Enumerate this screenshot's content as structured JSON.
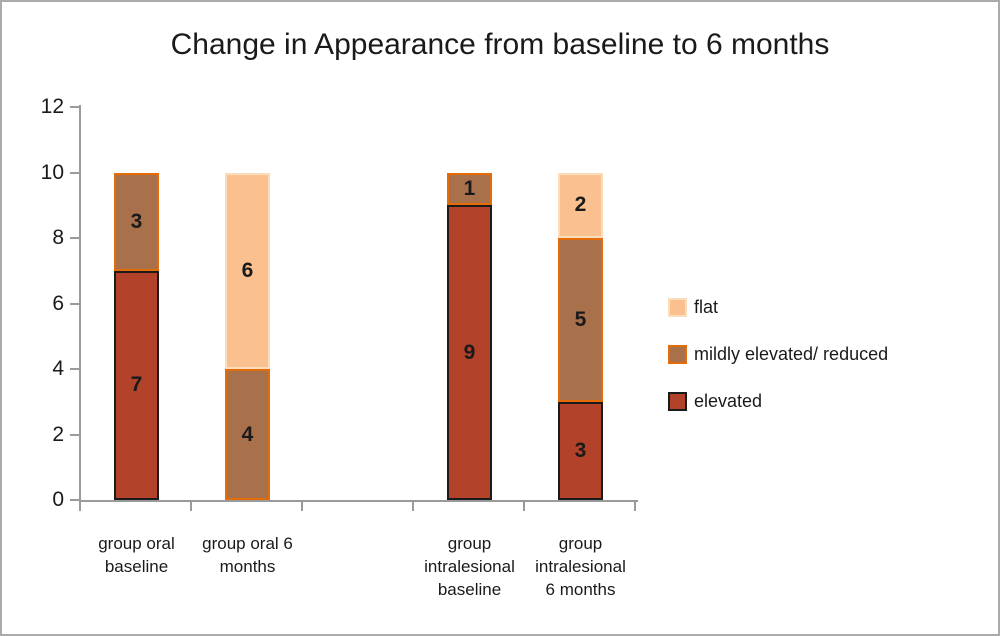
{
  "window": {
    "background": "#ffffff",
    "frame_border_color": "#ababab",
    "axis_color": "#9a9a9a",
    "text_color": "#1a1a1a"
  },
  "chart_data": {
    "type": "stacked-bar",
    "title": "Change in Appearance from baseline to 6 months",
    "xlabel": "",
    "ylabel": "",
    "ylim": [
      0,
      12
    ],
    "yticks": [
      0,
      2,
      4,
      6,
      8,
      10,
      12
    ],
    "grid": false,
    "legend_position": "right",
    "num_slots": 5,
    "series": [
      {
        "name": "flat",
        "fill": "#FAC090",
        "border": "#FBDCBB"
      },
      {
        "name": "mildly elevated/ reduced",
        "fill": "#A9714B",
        "border": "#E36C09"
      },
      {
        "name": "elevated",
        "fill": "#B2432A",
        "border": "#1B1B1B"
      }
    ],
    "bars": [
      {
        "slot": 0,
        "label": "group oral baseline",
        "label_lines": [
          "group oral",
          "baseline"
        ],
        "total": 10,
        "segments": [
          {
            "series": "elevated",
            "value": 7
          },
          {
            "series": "mildly elevated/ reduced",
            "value": 3
          }
        ]
      },
      {
        "slot": 1,
        "label": "group oral 6 months",
        "label_lines": [
          "group oral 6",
          "months"
        ],
        "total": 10,
        "segments": [
          {
            "series": "mildly elevated/ reduced",
            "value": 4
          },
          {
            "series": "flat",
            "value": 6
          }
        ]
      },
      {
        "slot": 3,
        "label": "group intralesional baseline",
        "label_lines": [
          "group",
          "intralesional",
          "baseline"
        ],
        "total": 10,
        "segments": [
          {
            "series": "elevated",
            "value": 9
          },
          {
            "series": "mildly elevated/ reduced",
            "value": 1
          }
        ]
      },
      {
        "slot": 4,
        "label": "group intralesional 6 months",
        "label_lines": [
          "group",
          "intralesional",
          "6 months"
        ],
        "total": 10,
        "segments": [
          {
            "series": "elevated",
            "value": 3
          },
          {
            "series": "mildly elevated/ reduced",
            "value": 5
          },
          {
            "series": "flat",
            "value": 2
          }
        ]
      }
    ]
  }
}
